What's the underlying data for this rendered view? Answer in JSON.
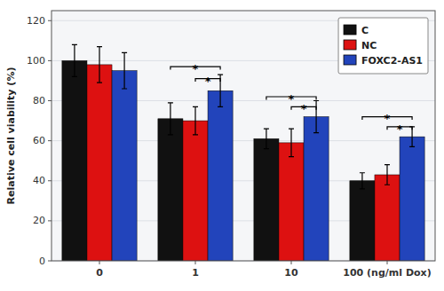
{
  "chart_data": {
    "type": "bar",
    "categories": [
      "0",
      "1",
      "10",
      "100 (ng/ml Dox)"
    ],
    "series": [
      {
        "name": "C",
        "color": "#111111",
        "values": [
          100,
          71,
          61,
          40
        ],
        "errors": [
          8,
          8,
          5,
          4
        ]
      },
      {
        "name": "NC",
        "color": "#dd1111",
        "values": [
          98,
          70,
          59,
          43
        ],
        "errors": [
          9,
          7,
          7,
          5
        ]
      },
      {
        "name": "FOXC2-AS1",
        "color": "#2244bb",
        "values": [
          95,
          85,
          72,
          62
        ],
        "errors": [
          9,
          8,
          8,
          5
        ]
      }
    ],
    "ylabel": "Relative cell viability (%)",
    "ylim": [
      0,
      125
    ],
    "yticks": [
      0,
      20,
      40,
      60,
      80,
      100,
      120
    ],
    "grid": true,
    "legend": "upper right",
    "annotations": [
      {
        "text": "*",
        "category": "1",
        "between": [
          "C",
          "FOXC2-AS1"
        ],
        "y": 97
      },
      {
        "text": "*",
        "category": "1",
        "between": [
          "NC",
          "FOXC2-AS1"
        ],
        "y": 91
      },
      {
        "text": "*",
        "category": "10",
        "between": [
          "C",
          "FOXC2-AS1"
        ],
        "y": 82
      },
      {
        "text": "*",
        "category": "10",
        "between": [
          "NC",
          "FOXC2-AS1"
        ],
        "y": 77
      },
      {
        "text": "*",
        "category": "100 (ng/ml Dox)",
        "between": [
          "C",
          "FOXC2-AS1"
        ],
        "y": 72
      },
      {
        "text": "*",
        "category": "100 (ng/ml Dox)",
        "between": [
          "NC",
          "FOXC2-AS1"
        ],
        "y": 67
      }
    ]
  }
}
